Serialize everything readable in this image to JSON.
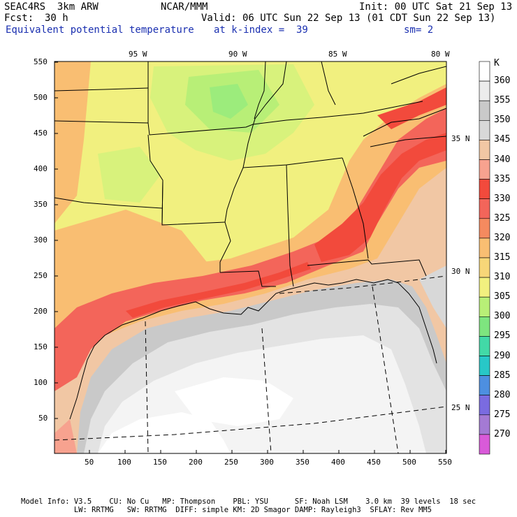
{
  "header": {
    "model": "SEAC4RS  3km ARW",
    "org": "NCAR/MMM",
    "init": "Init: 00 UTC Sat 21 Sep 13",
    "fcst_label": "Fcst:",
    "fcst_value": "30 h",
    "valid": "Valid: 06 UTC Sun 22 Sep 13 (01 CDT Sun 22 Sep 13)",
    "field": "Equivalent potential temperature",
    "level": "at k-index =  39",
    "smooth": "sm= 2"
  },
  "axes": {
    "x_ticks": [
      "50",
      "100",
      "150",
      "200",
      "250",
      "300",
      "350",
      "400",
      "450",
      "500",
      "550"
    ],
    "y_ticks": [
      "50",
      "100",
      "150",
      "200",
      "250",
      "300",
      "350",
      "400",
      "450",
      "500",
      "550"
    ],
    "lon_labels": [
      "95 W",
      "90 W",
      "85 W",
      "80 W"
    ],
    "lat_labels": [
      "35 N",
      "30 N",
      "25 N"
    ]
  },
  "colorbar": {
    "unit": "K",
    "levels": [
      "360",
      "355",
      "350",
      "345",
      "340",
      "335",
      "330",
      "325",
      "320",
      "315",
      "310",
      "305",
      "300",
      "295",
      "290",
      "285",
      "280",
      "275",
      "270"
    ],
    "colors": [
      "#ffffff",
      "#ececec",
      "#c9c9c9",
      "#d8d8d8",
      "#f1c7a4",
      "#f7a28f",
      "#f24a3c",
      "#f3655a",
      "#f58a5f",
      "#f9be72",
      "#f7d678",
      "#f1f07f",
      "#b8ef77",
      "#7ee57f",
      "#42d9a7",
      "#28c7c7",
      "#4d8fe0",
      "#7a6be0",
      "#a47ad4",
      "#d95ad9"
    ]
  },
  "footer": {
    "line1": "Model Info: V3.5    CU: No Cu   MP: Thompson    PBL: YSU      SF: Noah LSM    3.0 km  39 levels  18 sec",
    "line2": "            LW: RRTMG   SW: RRTMG  DIFF: simple KM: 2D Smagor DAMP: Rayleigh3  SFLAY: Rev MM5"
  }
}
